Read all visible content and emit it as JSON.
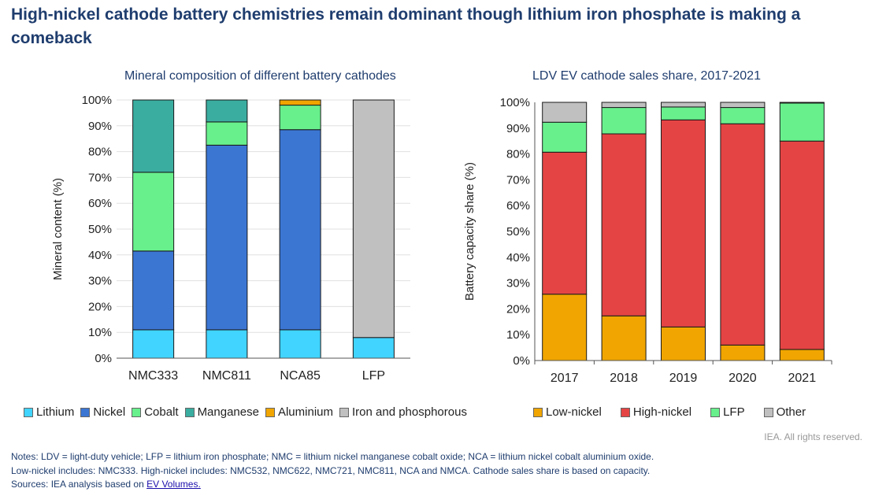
{
  "title": "High-nickel cathode battery chemistries remain dominant though lithium iron phosphate is making a comeback",
  "rights": "IEA. All rights reserved.",
  "notes": {
    "line1": "Notes: LDV = light-duty vehicle; LFP = lithium iron phosphate; NMC = lithium nickel manganese cobalt oxide; NCA = lithium nickel cobalt aluminium oxide.",
    "line2": "Low-nickel includes: NMC333. High-nickel includes: NMC532, NMC622, NMC721, NMC811, NCA and NMCA. Cathode sales share is based on capacity.",
    "sources_prefix": "Sources: IEA analysis based on ",
    "sources_link": "EV Volumes."
  },
  "chart_data": [
    {
      "type": "bar",
      "stacked": true,
      "title": "Mineral composition of different battery cathodes",
      "xlabel": "",
      "ylabel": "Mineral content (%)",
      "ylim": [
        0,
        100
      ],
      "yticks": [
        "0%",
        "10%",
        "20%",
        "30%",
        "40%",
        "50%",
        "60%",
        "70%",
        "80%",
        "90%",
        "100%"
      ],
      "grid": true,
      "legend_position": "bottom",
      "categories": [
        "NMC333",
        "NMC811",
        "NCA85",
        "LFP"
      ],
      "series": [
        {
          "name": "Lithium",
          "color": "#41d4ff",
          "values": [
            11,
            11,
            11,
            8
          ]
        },
        {
          "name": "Nickel",
          "color": "#3b76d3",
          "values": [
            30.5,
            71.5,
            77.5,
            0
          ]
        },
        {
          "name": "Cobalt",
          "color": "#68f08d",
          "values": [
            30.5,
            9,
            9.5,
            0
          ]
        },
        {
          "name": "Manganese",
          "color": "#3aada0",
          "values": [
            28,
            8.5,
            0,
            0
          ]
        },
        {
          "name": "Aluminium",
          "color": "#f0a500",
          "values": [
            0,
            0,
            2,
            0
          ]
        },
        {
          "name": "Iron and phosphorous",
          "color": "#c0c0c0",
          "values": [
            0,
            0,
            0,
            92
          ]
        }
      ]
    },
    {
      "type": "bar",
      "stacked": true,
      "title": "LDV EV cathode sales share, 2017-2021",
      "xlabel": "",
      "ylabel": "Battery capacity share (%)",
      "ylim": [
        0,
        100
      ],
      "yticks": [
        "0%",
        "10%",
        "20%",
        "30%",
        "40%",
        "50%",
        "60%",
        "70%",
        "80%",
        "90%",
        "100%"
      ],
      "grid": false,
      "legend_position": "bottom",
      "categories": [
        "2017",
        "2018",
        "2019",
        "2020",
        "2021"
      ],
      "series": [
        {
          "name": "Low-nickel",
          "color": "#f0a500",
          "values": [
            25.7,
            17.3,
            13,
            6,
            4.3
          ]
        },
        {
          "name": "High-nickel",
          "color": "#e54444",
          "values": [
            55,
            70.5,
            80.2,
            85.7,
            80.7
          ]
        },
        {
          "name": "LFP",
          "color": "#68f08d",
          "values": [
            11.6,
            10.2,
            5,
            6.3,
            14.7
          ]
        },
        {
          "name": "Other",
          "color": "#c0c0c0",
          "values": [
            7.7,
            2,
            1.8,
            2,
            0.3
          ]
        }
      ]
    }
  ]
}
